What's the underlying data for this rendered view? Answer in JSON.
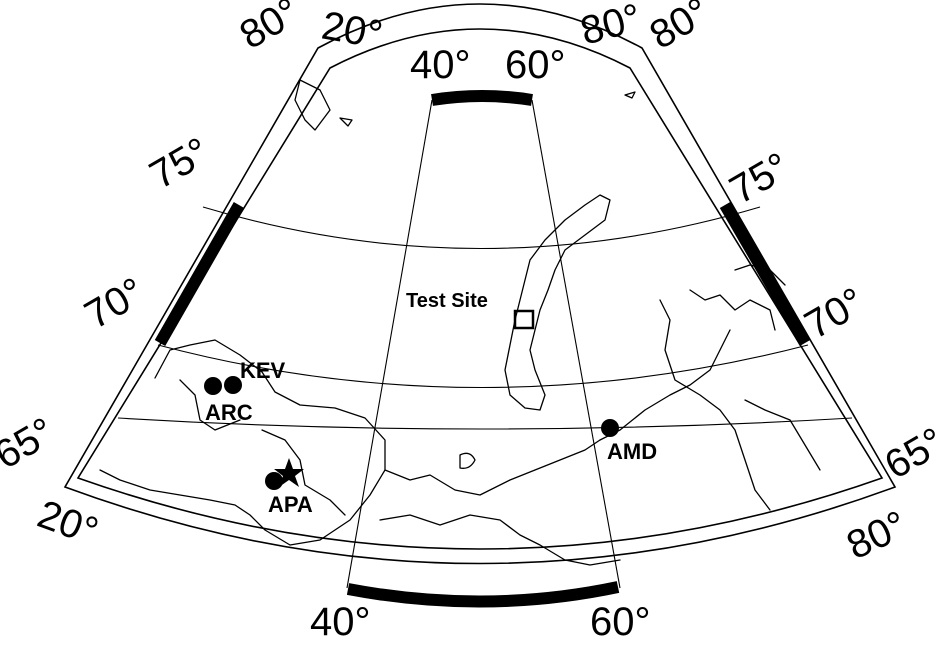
{
  "map": {
    "graticule_labels": {
      "lat_left_80": "80°",
      "lat_left_75": "75°",
      "lat_left_70": "70°",
      "lat_left_65": "65°",
      "lat_right_80": "80°",
      "lat_right_75": "75°",
      "lat_right_70": "70°",
      "lat_right_65": "65°",
      "lon_top_20": "20°",
      "lon_top_40": "40°",
      "lon_top_60": "60°",
      "lon_top_80": "80°",
      "lon_bottom_20": "20°",
      "lon_bottom_40": "40°",
      "lon_bottom_60": "60°",
      "lon_bottom_80": "80°"
    },
    "stations": [
      {
        "code": "KEV"
      },
      {
        "code": "ARC"
      },
      {
        "code": "APA"
      },
      {
        "code": "AMD"
      }
    ],
    "test_site": {
      "label": "Test Site"
    },
    "colors": {
      "ink": "#000000",
      "background": "#ffffff"
    }
  }
}
